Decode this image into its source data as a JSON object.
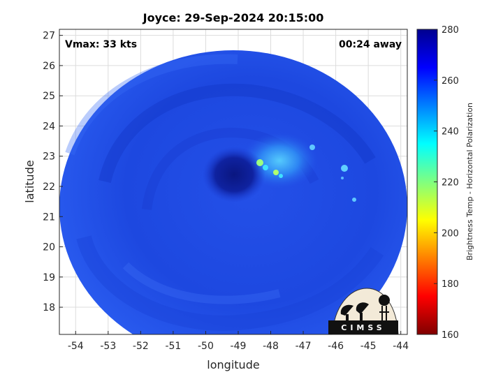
{
  "title": "Joyce: 29-Sep-2024 20:15:00",
  "vmax_label": "Vmax: 33 kts",
  "time_away_label": "00:24 away",
  "x_axis": {
    "label": "longitude",
    "range": [
      -54.5,
      -43.8
    ],
    "ticks": [
      -54,
      -53,
      -52,
      -51,
      -50,
      -49,
      -48,
      -47,
      -46,
      -45,
      -44
    ]
  },
  "y_axis": {
    "label": "latitude",
    "range": [
      17.1,
      27.2
    ],
    "ticks": [
      18,
      19,
      20,
      21,
      22,
      23,
      24,
      25,
      26,
      27
    ]
  },
  "colorbar": {
    "label": "Brightness Temp - Horizontal Polarization",
    "range": [
      160,
      280
    ],
    "ticks": [
      160,
      180,
      200,
      220,
      240,
      260,
      280
    ],
    "colors": [
      "#800000",
      "#ff0000",
      "#ff8000",
      "#ffff00",
      "#80ff80",
      "#00ffff",
      "#0080ff",
      "#0000ff",
      "#00008f"
    ]
  },
  "grid": true,
  "scan_center": {
    "lon": -49.2,
    "lat": 22.2
  },
  "storm_center": {
    "lon": -49.1,
    "lat": 22.5
  },
  "logo": {
    "text": "CIMSS"
  },
  "colors": {
    "background_field": "#1f4fe6",
    "eye": "#0d1f8f",
    "convection": "#4dd2ff"
  }
}
